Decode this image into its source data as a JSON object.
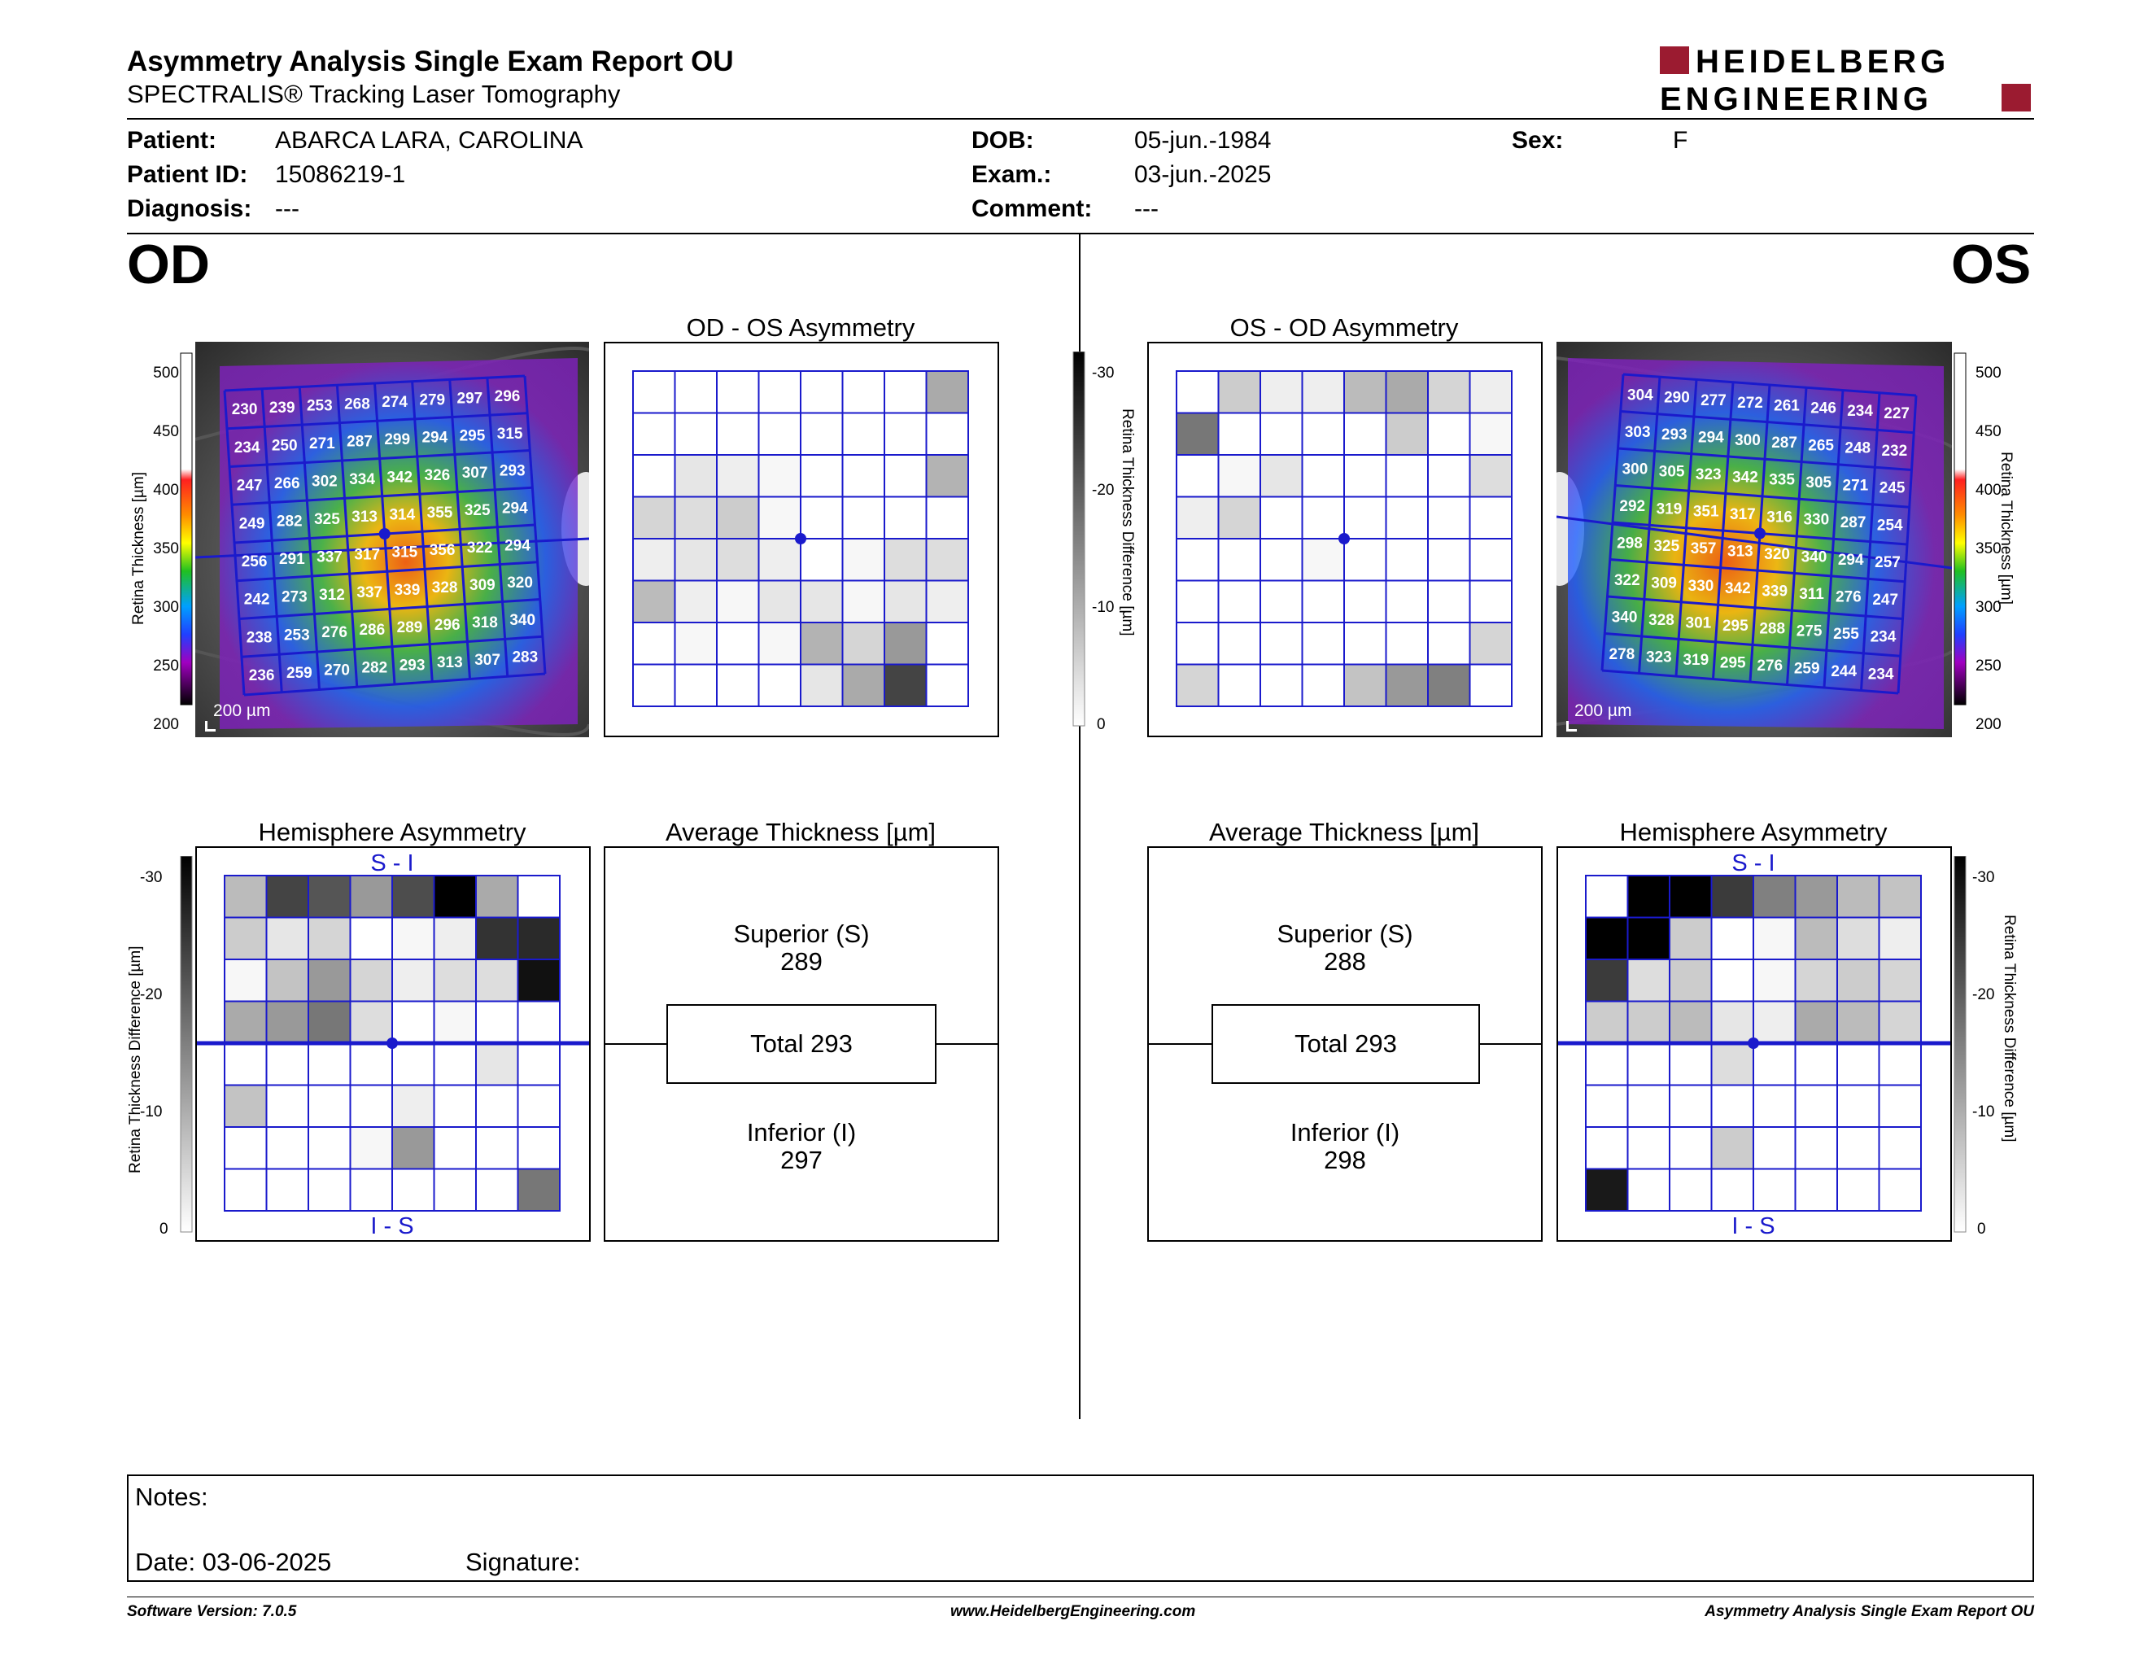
{
  "report": {
    "title": "Asymmetry Analysis Single Exam Report OU",
    "subtitle": "SPECTRALIS® Tracking Laser Tomography",
    "logo_line1": "HEIDELBERG",
    "logo_line2": "ENGINEERING"
  },
  "patient": {
    "patient_label": "Patient:",
    "patient_value": "ABARCA LARA, CAROLINA",
    "id_label": "Patient ID:",
    "id_value": "15086219-1",
    "diagnosis_label": "Diagnosis:",
    "diagnosis_value": "---",
    "dob_label": "DOB:",
    "dob_value": "05-jun.-1984",
    "exam_label": "Exam.:",
    "exam_value": "03-jun.-2025",
    "comment_label": "Comment:",
    "comment_value": "---",
    "sex_label": "Sex:",
    "sex_value": "F"
  },
  "od": {
    "eye_label": "OD",
    "scale_bar": "200 µm",
    "thickness_axis": "Retina Thickness [µm]",
    "thickness_ticks": [
      "500",
      "450",
      "400",
      "350",
      "300",
      "250",
      "200"
    ],
    "thickness_grid": [
      [
        230,
        239,
        253,
        268,
        274,
        279,
        297,
        296
      ],
      [
        234,
        250,
        271,
        287,
        299,
        294,
        295,
        315
      ],
      [
        247,
        266,
        302,
        334,
        342,
        326,
        307,
        293
      ],
      [
        249,
        282,
        325,
        313,
        314,
        355,
        325,
        294
      ],
      [
        256,
        291,
        337,
        317,
        315,
        356,
        322,
        294
      ],
      [
        242,
        273,
        312,
        337,
        339,
        328,
        309,
        320
      ],
      [
        238,
        253,
        276,
        286,
        289,
        296,
        318,
        340
      ],
      [
        236,
        259,
        270,
        282,
        293,
        313,
        307,
        283
      ]
    ],
    "asym_title": "OD - OS Asymmetry",
    "asym_grid": [
      [
        0,
        0,
        0,
        0,
        0,
        0,
        0,
        10
      ],
      [
        0,
        0,
        0,
        0,
        0,
        0,
        0,
        0
      ],
      [
        0,
        3,
        2,
        1,
        0,
        0,
        0,
        9
      ],
      [
        5,
        4,
        6,
        1,
        0,
        0,
        0,
        0
      ],
      [
        2,
        3,
        4,
        2,
        0,
        1,
        4,
        4
      ],
      [
        8,
        2,
        1,
        3,
        3,
        1,
        3,
        2
      ],
      [
        0,
        1,
        0,
        1,
        9,
        5,
        12,
        0
      ],
      [
        0,
        0,
        0,
        0,
        3,
        10,
        22,
        0
      ]
    ],
    "hemi_title": "Hemisphere Asymmetry",
    "hemi_top": "S - I",
    "hemi_bottom": "I - S",
    "hemi_grid": [
      [
        8,
        22,
        20,
        12,
        21,
        30,
        10,
        0
      ],
      [
        6,
        3,
        5,
        0,
        1,
        2,
        24,
        25
      ],
      [
        1,
        7,
        12,
        5,
        2,
        4,
        4,
        28
      ],
      [
        10,
        12,
        16,
        4,
        0,
        1,
        0,
        0
      ],
      [
        0,
        0,
        0,
        0,
        0,
        0,
        3,
        0
      ],
      [
        7,
        0,
        0,
        0,
        2,
        0,
        0,
        0
      ],
      [
        0,
        0,
        0,
        1,
        12,
        0,
        0,
        0
      ],
      [
        0,
        0,
        0,
        0,
        0,
        0,
        0,
        16
      ]
    ],
    "diff_axis": "Retina Thickness Difference [µm]",
    "diff_ticks": [
      "-30",
      "-20",
      "-10",
      "0"
    ],
    "avg_title": "Average Thickness [µm]",
    "avg_superior_label": "Superior (S)",
    "avg_superior_value": "289",
    "avg_total": "Total 293",
    "avg_inferior_label": "Inferior (I)",
    "avg_inferior_value": "297"
  },
  "os": {
    "eye_label": "OS",
    "scale_bar": "200 µm",
    "thickness_axis": "Retina Thickness [µm]",
    "thickness_ticks": [
      "500",
      "450",
      "400",
      "350",
      "300",
      "250",
      "200"
    ],
    "thickness_grid": [
      [
        304,
        290,
        277,
        272,
        261,
        246,
        234,
        227
      ],
      [
        303,
        293,
        294,
        300,
        287,
        265,
        248,
        232
      ],
      [
        300,
        305,
        323,
        342,
        335,
        305,
        271,
        245
      ],
      [
        292,
        319,
        351,
        317,
        316,
        330,
        287,
        254
      ],
      [
        298,
        325,
        357,
        313,
        320,
        340,
        294,
        257
      ],
      [
        322,
        309,
        330,
        342,
        339,
        311,
        276,
        247
      ],
      [
        340,
        328,
        301,
        295,
        288,
        275,
        255,
        234
      ],
      [
        278,
        323,
        319,
        295,
        276,
        259,
        244,
        234
      ]
    ],
    "asym_title": "OS - OD Asymmetry",
    "asym_grid": [
      [
        0,
        6,
        2,
        2,
        8,
        10,
        5,
        2
      ],
      [
        16,
        0,
        0,
        0,
        0,
        6,
        0,
        1
      ],
      [
        0,
        1,
        3,
        0,
        0,
        0,
        0,
        4
      ],
      [
        2,
        5,
        0,
        0,
        0,
        0,
        0,
        0
      ],
      [
        0,
        0,
        0,
        1,
        0,
        0,
        0,
        0
      ],
      [
        0,
        0,
        0,
        0,
        0,
        0,
        0,
        0
      ],
      [
        0,
        0,
        0,
        0,
        0,
        0,
        0,
        5
      ],
      [
        5,
        0,
        0,
        0,
        7,
        12,
        15,
        0
      ]
    ],
    "hemi_title": "Hemisphere Asymmetry",
    "hemi_top": "S - I",
    "hemi_bottom": "I - S",
    "hemi_grid": [
      [
        0,
        30,
        30,
        23,
        15,
        12,
        8,
        7
      ],
      [
        30,
        30,
        6,
        0,
        1,
        8,
        4,
        2
      ],
      [
        23,
        4,
        6,
        0,
        1,
        5,
        6,
        5
      ],
      [
        6,
        6,
        8,
        3,
        2,
        10,
        8,
        5
      ],
      [
        0,
        0,
        0,
        4,
        0,
        0,
        0,
        0
      ],
      [
        0,
        0,
        0,
        0,
        0,
        0,
        0,
        0
      ],
      [
        0,
        0,
        0,
        6,
        0,
        0,
        0,
        0
      ],
      [
        27,
        0,
        0,
        0,
        0,
        0,
        0,
        0
      ]
    ],
    "diff_axis": "Retina Thickness Difference [µm]",
    "diff_ticks": [
      "-30",
      "-20",
      "-10",
      "0"
    ],
    "avg_title": "Average Thickness [µm]",
    "avg_superior_label": "Superior (S)",
    "avg_superior_value": "288",
    "avg_total": "Total 293",
    "avg_inferior_label": "Inferior (I)",
    "avg_inferior_value": "298"
  },
  "center_diff_axis": "Retina Thickness Difference [µm]",
  "center_diff_ticks": [
    "-30",
    "-20",
    "-10",
    "0"
  ],
  "notes": {
    "notes_label": "Notes:",
    "date_text": "Date: 03-06-2025",
    "signature_label": "Signature:"
  },
  "footer": {
    "software": "Software Version: 7.0.5",
    "website": "www.HeidelbergEngineering.com",
    "report_name": "Asymmetry Analysis Single Exam Report OU"
  },
  "colors": {
    "grid_blue": "#1a1acc",
    "logo_red": "#9b1b30"
  }
}
